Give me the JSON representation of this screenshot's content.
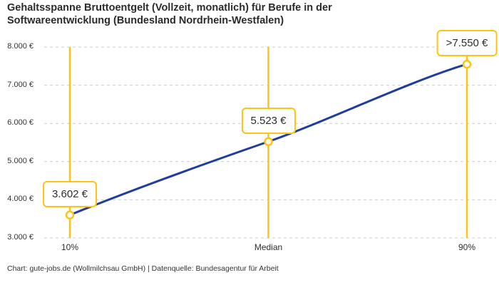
{
  "footer": "Chart: gute-jobs.de (Wollmilchsau GmbH) | Datenquelle: Bundesagentur für Arbeit",
  "colors": {
    "accent": "#FDC413",
    "line": "#1F3D9C",
    "grid": "#CCCCCC",
    "text": "#2E2E2E"
  },
  "chart_data": {
    "type": "line",
    "title": "Gehaltsspanne Bruttoentgelt (Vollzeit, monatlich) für Berufe in der Softwareentwicklung (Bundesland Nordrhein-Westfalen)",
    "categories": [
      "10%",
      "Median",
      "90%"
    ],
    "values": [
      3602,
      5523,
      7550
    ],
    "value_labels": [
      "3.602 €",
      "5.523 €",
      ">7.550 €"
    ],
    "ylim": [
      3000,
      8000
    ],
    "y_ticks": [
      {
        "value": 8000,
        "label": "8.000 €"
      },
      {
        "value": 7000,
        "label": "7.000 €"
      },
      {
        "value": 6000,
        "label": "6.000 €"
      },
      {
        "value": 5000,
        "label": "5.000 €"
      },
      {
        "value": 4000,
        "label": "4.000 €"
      },
      {
        "value": 3000,
        "label": "3.000 €"
      }
    ],
    "grid": "horizontal-dashed",
    "legend": "none",
    "annotations": "value callout boxes above each point, vertical accent lines at each percentile"
  }
}
